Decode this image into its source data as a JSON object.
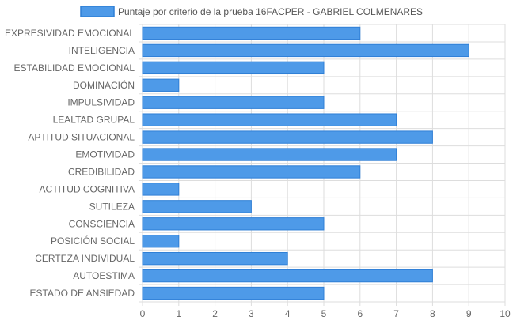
{
  "chart_data": {
    "type": "bar",
    "orientation": "horizontal",
    "categories": [
      "EXPRESIVIDAD EMOCIONAL",
      "INTELIGENCIA",
      "ESTABILIDAD EMOCIONAL",
      "DOMINACIÓN",
      "IMPULSIVIDAD",
      "LEALTAD GRUPAL",
      "APTITUD SITUACIONAL",
      "EMOTIVIDAD",
      "CREDIBILIDAD",
      "ACTITUD COGNITIVA",
      "SUTILEZA",
      "CONSCIENCIA",
      "POSICIÓN SOCIAL",
      "CERTEZA INDIVIDUAL",
      "AUTOESTIMA",
      "ESTADO DE ANSIEDAD"
    ],
    "series": [
      {
        "name": "Puntaje por criterio de la prueba 16FACPER - GABRIEL COLMENARES",
        "values": [
          6,
          9,
          5,
          1,
          5,
          7,
          8,
          7,
          6,
          1,
          3,
          5,
          1,
          4,
          8,
          5
        ]
      }
    ],
    "xlim": [
      0,
      10
    ],
    "x_ticks": [
      "0",
      "1",
      "2",
      "3",
      "4",
      "5",
      "6",
      "7",
      "8",
      "9",
      "10"
    ],
    "grid": true,
    "legend_position": "top",
    "colors": {
      "bar_fill": "#4e9ae8",
      "bar_stroke": "#2f7fd6",
      "grid": "#dddddd",
      "text": "#666666"
    }
  }
}
